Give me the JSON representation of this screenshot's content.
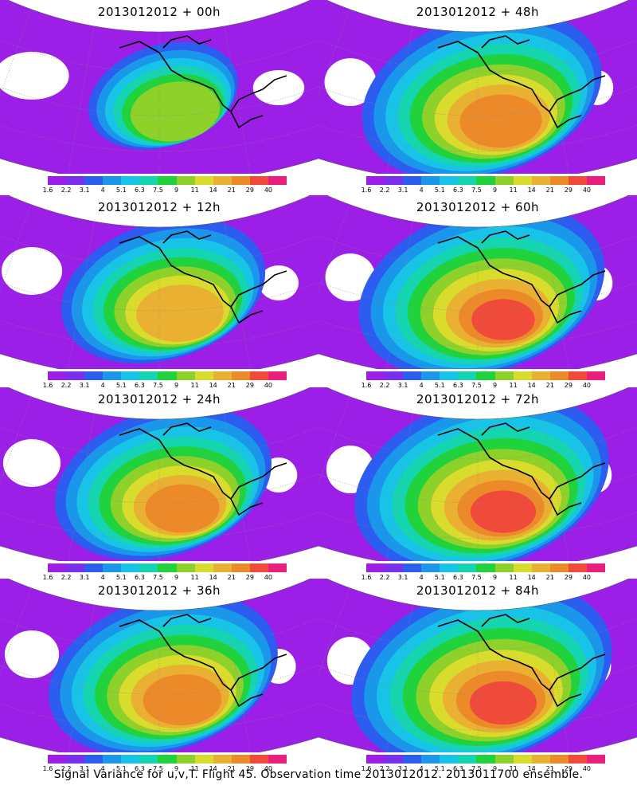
{
  "caption": "Signal Variance for u,v,T. Flight 45. Observation time 2013012012. 2013011700 ensemble.",
  "colorbar": {
    "labels": [
      "1.6",
      "2.2",
      "3.1",
      "4",
      "5.1",
      "6.3",
      "7.5",
      "9",
      "11",
      "14",
      "21",
      "29",
      "40"
    ],
    "colors": [
      "#9b1fe6",
      "#7a2ef0",
      "#2d5cf0",
      "#1a96ea",
      "#17c3e6",
      "#15d4b0",
      "#20d23c",
      "#8ed12a",
      "#d9dc2c",
      "#e9b032",
      "#ec8a2a",
      "#ef4a3a",
      "#ea1f7c"
    ]
  },
  "panels": [
    {
      "title": "2013012012 + 00h",
      "intensity": 0.42
    },
    {
      "title": "2013012012 + 48h",
      "intensity": 0.85
    },
    {
      "title": "2013012012 + 12h",
      "intensity": 0.68
    },
    {
      "title": "2013012012 + 60h",
      "intensity": 0.88
    },
    {
      "title": "2013012012 + 24h",
      "intensity": 0.74
    },
    {
      "title": "2013012012 + 72h",
      "intensity": 0.92
    },
    {
      "title": "2013012012 + 36h",
      "intensity": 0.8
    },
    {
      "title": "2013012012 + 84h",
      "intensity": 0.95
    }
  ]
}
